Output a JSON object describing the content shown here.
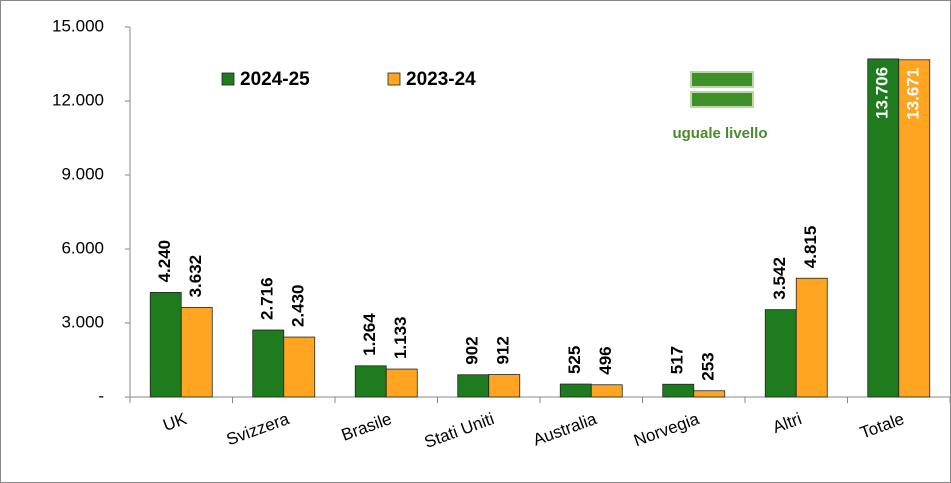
{
  "chart_data": {
    "type": "bar",
    "categories": [
      "UK",
      "Svizzera",
      "Brasile",
      "Stati Uniti",
      "Australia",
      "Norvegia",
      "Altri",
      "Totale"
    ],
    "series": [
      {
        "name": "2024-25",
        "color": "#1e7b1e",
        "values": [
          4240,
          2716,
          1264,
          902,
          525,
          517,
          3542,
          13706
        ],
        "value_labels": [
          "4.240",
          "2.716",
          "1.264",
          "902",
          "525",
          "517",
          "3.542",
          "13.706"
        ]
      },
      {
        "name": "2023-24",
        "color": "#ffa521",
        "values": [
          3632,
          2430,
          1133,
          912,
          496,
          253,
          4815,
          13671
        ],
        "value_labels": [
          "3.632",
          "2.430",
          "1.133",
          "912",
          "496",
          "253",
          "4.815",
          "13.671"
        ]
      }
    ],
    "ylim": [
      0,
      15000
    ],
    "yticks": [
      {
        "value": 0,
        "label": "-"
      },
      {
        "value": 3000,
        "label": "3.000"
      },
      {
        "value": 6000,
        "label": "6.000"
      },
      {
        "value": 9000,
        "label": "9.000"
      },
      {
        "value": 12000,
        "label": "12.000"
      },
      {
        "value": 15000,
        "label": "15.000"
      }
    ],
    "annotation": "uguale livello",
    "legend": "top-left"
  }
}
